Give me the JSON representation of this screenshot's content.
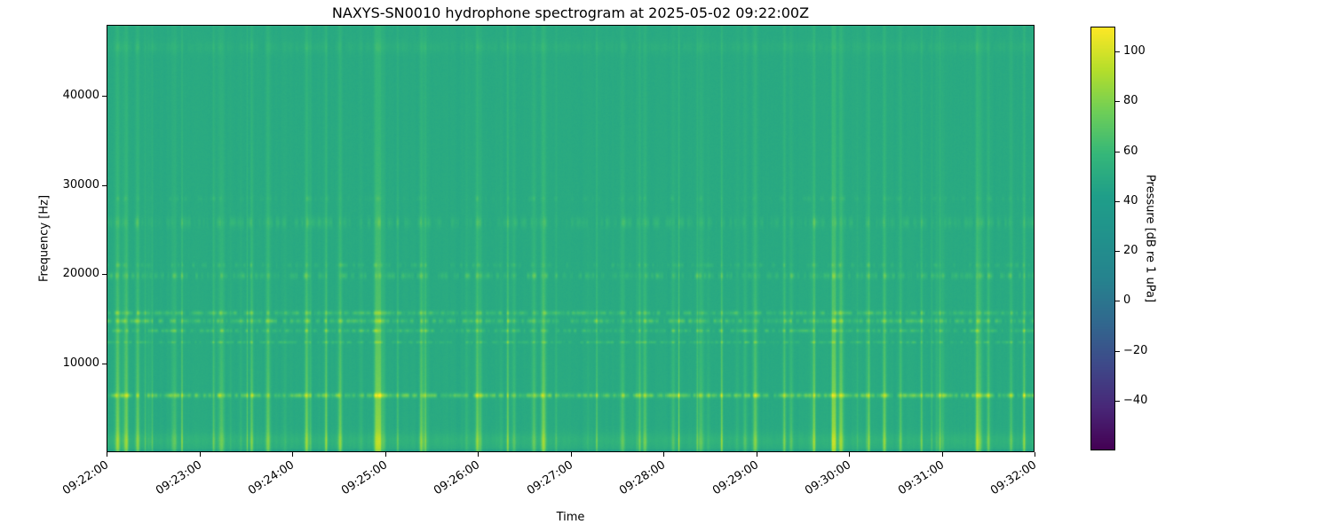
{
  "figure": {
    "background_color": "#ffffff",
    "frame_color": "#000000",
    "text_color": "#000000"
  },
  "chart_data": {
    "type": "heatmap",
    "subtype": "spectrogram",
    "title": "NAXYS-SN0010 hydrophone spectrogram at 2025-05-02 09:22:00Z",
    "xlabel": "Time",
    "ylabel": "Frequency [Hz]",
    "x_tick_labels": [
      "09:22:00",
      "09:23:00",
      "09:24:00",
      "09:25:00",
      "09:26:00",
      "09:27:00",
      "09:28:00",
      "09:29:00",
      "09:30:00",
      "09:31:00",
      "09:32:00"
    ],
    "y_ticks": [
      {
        "value": 10000,
        "label": "10000"
      },
      {
        "value": 20000,
        "label": "20000"
      },
      {
        "value": 30000,
        "label": "30000"
      },
      {
        "value": 40000,
        "label": "40000"
      }
    ],
    "x_range": {
      "start": "09:22:00",
      "end": "09:32:00",
      "duration_s": 600
    },
    "y_range_hz": [
      0,
      48000
    ],
    "grid": false,
    "colormap": "viridis",
    "colormap_stops": [
      "#440154",
      "#482878",
      "#3e4989",
      "#31688e",
      "#26828e",
      "#21918c",
      "#1f9e89",
      "#35b779",
      "#6ece58",
      "#b5de2b",
      "#fde725"
    ],
    "colorbar": {
      "label": "Pressure [dB re 1 uPa]",
      "position": "right",
      "vmin": -60,
      "vmax": 110,
      "ticks": [
        {
          "value": 100,
          "label": "100"
        },
        {
          "value": 80,
          "label": "80"
        },
        {
          "value": 60,
          "label": "60"
        },
        {
          "value": 40,
          "label": "40"
        },
        {
          "value": 20,
          "label": "20"
        },
        {
          "value": 0,
          "label": "0"
        },
        {
          "value": -20,
          "label": "−20"
        },
        {
          "value": -40,
          "label": "−40"
        }
      ]
    },
    "background_level_db": 50,
    "tonal_bands": [
      {
        "freq_hz": 6300,
        "halfwidth_hz": 260,
        "peak_db_above_bg": 26,
        "duty": 0.85
      },
      {
        "freq_hz": 12300,
        "halfwidth_hz": 150,
        "peak_db_above_bg": 13,
        "duty": 0.7
      },
      {
        "freq_hz": 13600,
        "halfwidth_hz": 200,
        "peak_db_above_bg": 15,
        "duty": 0.7
      },
      {
        "freq_hz": 14700,
        "halfwidth_hz": 260,
        "peak_db_above_bg": 18,
        "duty": 0.75
      },
      {
        "freq_hz": 15600,
        "halfwidth_hz": 240,
        "peak_db_above_bg": 15,
        "duty": 0.7
      },
      {
        "freq_hz": 19800,
        "halfwidth_hz": 350,
        "peak_db_above_bg": 12,
        "duty": 0.6
      },
      {
        "freq_hz": 21000,
        "halfwidth_hz": 250,
        "peak_db_above_bg": 8,
        "duty": 0.5
      },
      {
        "freq_hz": 25800,
        "halfwidth_hz": 600,
        "peak_db_above_bg": 8,
        "duty": 0.55
      },
      {
        "freq_hz": 28500,
        "halfwidth_hz": 300,
        "peak_db_above_bg": 5,
        "duty": 0.4
      },
      {
        "freq_hz": 45600,
        "halfwidth_hz": 700,
        "peak_db_above_bg": 4,
        "duty": 0.9
      },
      {
        "freq_hz": 1200,
        "halfwidth_hz": 900,
        "peak_db_above_bg": 6,
        "duty": 1.0
      }
    ],
    "broadband_transients": {
      "count": 90,
      "max_db_above_bg": 34,
      "freq_coupling_decay_hz": 15000
    },
    "noise_db": 1.1,
    "seed": 20250502
  }
}
